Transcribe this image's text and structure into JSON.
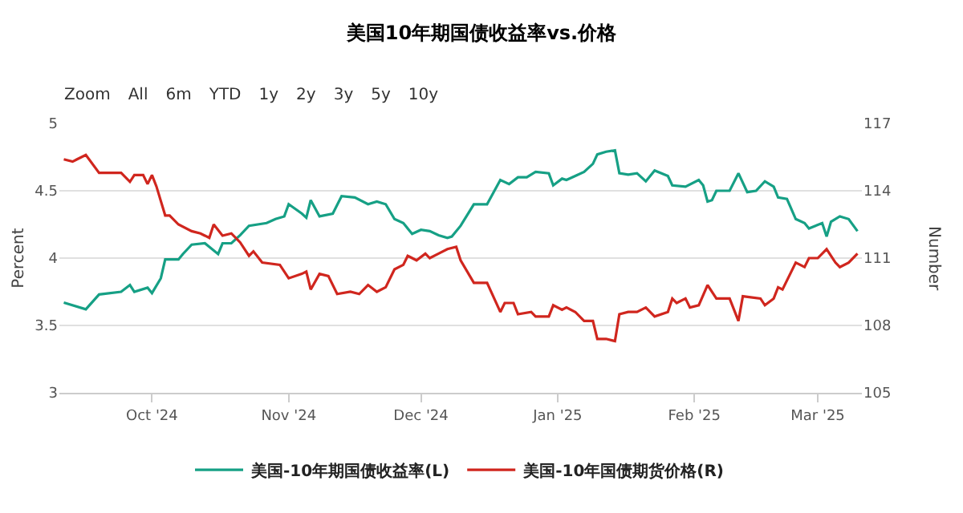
{
  "chart_data": {
    "type": "line",
    "title": "美国10年期国债收益率vs.价格",
    "ylabel": "Percent",
    "y2label": "Number",
    "annotations": [
      "Zoom",
      "All",
      "6m",
      "YTD",
      "1y",
      "2y",
      "3y",
      "5y",
      "10y"
    ],
    "xlim": [
      "2024-09-10",
      "2025-03-11"
    ],
    "xticks": [
      {
        "value": "2024-10-01",
        "label": "Oct '24"
      },
      {
        "value": "2024-11-01",
        "label": "Nov '24"
      },
      {
        "value": "2024-12-01",
        "label": "Dec '24"
      },
      {
        "value": "2025-01-01",
        "label": "Jan '25"
      },
      {
        "value": "2025-02-01",
        "label": "Feb '25"
      },
      {
        "value": "2025-03-01",
        "label": "Mar '25"
      }
    ],
    "ylim": [
      3,
      5
    ],
    "yticks": [
      3,
      3.5,
      4,
      4.5,
      5
    ],
    "y2lim": [
      105,
      117
    ],
    "y2ticks": [
      105,
      108,
      111,
      114,
      117
    ],
    "grid": "y",
    "legend": "bottom",
    "line_style": "solid",
    "marker": "none",
    "series": [
      {
        "name": "美国-10年期国债收益率(L)",
        "color": "#16a085",
        "x": [
          "2024-09-11",
          "2024-09-16",
          "2024-09-19",
          "2024-09-24",
          "2024-09-26",
          "2024-09-27",
          "2024-09-30",
          "2024-10-01",
          "2024-10-03",
          "2024-10-04",
          "2024-10-07",
          "2024-10-08",
          "2024-10-10",
          "2024-10-13",
          "2024-10-16",
          "2024-10-17",
          "2024-10-19",
          "2024-10-21",
          "2024-10-23",
          "2024-10-27",
          "2024-10-29",
          "2024-10-31",
          "2024-11-01",
          "2024-11-04",
          "2024-11-05",
          "2024-11-06",
          "2024-11-08",
          "2024-11-11",
          "2024-11-13",
          "2024-11-16",
          "2024-11-19",
          "2024-11-21",
          "2024-11-23",
          "2024-11-25",
          "2024-11-27",
          "2024-11-29",
          "2024-12-01",
          "2024-12-03",
          "2024-12-05",
          "2024-12-07",
          "2024-12-08",
          "2024-12-10",
          "2024-12-13",
          "2024-12-16",
          "2024-12-19",
          "2024-12-21",
          "2024-12-23",
          "2024-12-25",
          "2024-12-27",
          "2024-12-30",
          "2024-12-31",
          "2025-01-02",
          "2025-01-03",
          "2025-01-05",
          "2025-01-07",
          "2025-01-09",
          "2025-01-10",
          "2025-01-12",
          "2025-01-14",
          "2025-01-15",
          "2025-01-17",
          "2025-01-19",
          "2025-01-21",
          "2025-01-23",
          "2025-01-26",
          "2025-01-27",
          "2025-01-30",
          "2025-02-02",
          "2025-02-03",
          "2025-02-04",
          "2025-02-05",
          "2025-02-06",
          "2025-02-09",
          "2025-02-11",
          "2025-02-13",
          "2025-02-15",
          "2025-02-17",
          "2025-02-19",
          "2025-02-20",
          "2025-02-22",
          "2025-02-24",
          "2025-02-26",
          "2025-02-27",
          "2025-03-02",
          "2025-03-03",
          "2025-03-04",
          "2025-03-06",
          "2025-03-08",
          "2025-03-10"
        ],
        "values": [
          3.67,
          3.62,
          3.73,
          3.75,
          3.8,
          3.75,
          3.78,
          3.74,
          3.85,
          3.99,
          3.99,
          4.03,
          4.1,
          4.11,
          4.03,
          4.11,
          4.11,
          4.17,
          4.24,
          4.26,
          4.29,
          4.31,
          4.4,
          4.33,
          4.3,
          4.43,
          4.31,
          4.33,
          4.46,
          4.45,
          4.4,
          4.42,
          4.4,
          4.29,
          4.26,
          4.18,
          4.21,
          4.2,
          4.17,
          4.15,
          4.16,
          4.24,
          4.4,
          4.4,
          4.58,
          4.55,
          4.6,
          4.6,
          4.64,
          4.63,
          4.54,
          4.59,
          4.58,
          4.61,
          4.64,
          4.7,
          4.77,
          4.79,
          4.8,
          4.63,
          4.62,
          4.63,
          4.57,
          4.65,
          4.61,
          4.54,
          4.53,
          4.58,
          4.54,
          4.42,
          4.43,
          4.5,
          4.5,
          4.63,
          4.49,
          4.5,
          4.57,
          4.53,
          4.45,
          4.44,
          4.29,
          4.26,
          4.22,
          4.26,
          4.16,
          4.27,
          4.31,
          4.29,
          4.2
        ]
      },
      {
        "name": "美国-10年国债期货价格(R)",
        "color": "#d0261e",
        "axis": "y2",
        "x": [
          "2024-09-11",
          "2024-09-13",
          "2024-09-14",
          "2024-09-16",
          "2024-09-19",
          "2024-09-22",
          "2024-09-24",
          "2024-09-26",
          "2024-09-27",
          "2024-09-29",
          "2024-09-30",
          "2024-10-01",
          "2024-10-02",
          "2024-10-04",
          "2024-10-05",
          "2024-10-07",
          "2024-10-10",
          "2024-10-12",
          "2024-10-14",
          "2024-10-15",
          "2024-10-17",
          "2024-10-19",
          "2024-10-21",
          "2024-10-23",
          "2024-10-24",
          "2024-10-26",
          "2024-10-30",
          "2024-11-01",
          "2024-11-04",
          "2024-11-05",
          "2024-11-06",
          "2024-11-08",
          "2024-11-10",
          "2024-11-12",
          "2024-11-15",
          "2024-11-17",
          "2024-11-19",
          "2024-11-21",
          "2024-11-23",
          "2024-11-25",
          "2024-11-27",
          "2024-11-28",
          "2024-11-30",
          "2024-12-02",
          "2024-12-03",
          "2024-12-05",
          "2024-12-07",
          "2024-12-09",
          "2024-12-10",
          "2024-12-13",
          "2024-12-16",
          "2024-12-19",
          "2024-12-20",
          "2024-12-22",
          "2024-12-23",
          "2024-12-26",
          "2024-12-27",
          "2024-12-30",
          "2024-12-31",
          "2025-01-02",
          "2025-01-03",
          "2025-01-05",
          "2025-01-07",
          "2025-01-09",
          "2025-01-10",
          "2025-01-12",
          "2025-01-14",
          "2025-01-15",
          "2025-01-17",
          "2025-01-19",
          "2025-01-21",
          "2025-01-23",
          "2025-01-26",
          "2025-01-27",
          "2025-01-28",
          "2025-01-30",
          "2025-01-31",
          "2025-02-02",
          "2025-02-04",
          "2025-02-06",
          "2025-02-09",
          "2025-02-11",
          "2025-02-12",
          "2025-02-16",
          "2025-02-17",
          "2025-02-19",
          "2025-02-20",
          "2025-02-21",
          "2025-02-24",
          "2025-02-26",
          "2025-02-27",
          "2025-03-01",
          "2025-03-03",
          "2025-03-05",
          "2025-03-06",
          "2025-03-08",
          "2025-03-10"
        ],
        "values": [
          115.4,
          115.3,
          115.4,
          115.6,
          114.8,
          114.8,
          114.8,
          114.4,
          114.7,
          114.7,
          114.3,
          114.7,
          114.2,
          112.9,
          112.9,
          112.5,
          112.2,
          112.1,
          111.9,
          112.5,
          112.0,
          112.1,
          111.7,
          111.1,
          111.3,
          110.8,
          110.7,
          110.1,
          110.3,
          110.4,
          109.6,
          110.3,
          110.2,
          109.4,
          109.5,
          109.4,
          109.8,
          109.5,
          109.7,
          110.5,
          110.7,
          111.1,
          110.9,
          111.2,
          111.0,
          111.2,
          111.4,
          111.5,
          110.9,
          109.9,
          109.9,
          108.6,
          109.0,
          109.0,
          108.5,
          108.6,
          108.4,
          108.4,
          108.9,
          108.7,
          108.8,
          108.6,
          108.2,
          108.2,
          107.4,
          107.4,
          107.3,
          108.5,
          108.6,
          108.6,
          108.8,
          108.4,
          108.6,
          109.2,
          109.0,
          109.2,
          108.8,
          108.9,
          109.8,
          109.2,
          109.2,
          108.2,
          109.3,
          109.2,
          108.9,
          109.2,
          109.7,
          109.6,
          110.8,
          110.6,
          111.0,
          111.0,
          111.4,
          110.8,
          110.6,
          110.8,
          111.2
        ]
      }
    ]
  }
}
